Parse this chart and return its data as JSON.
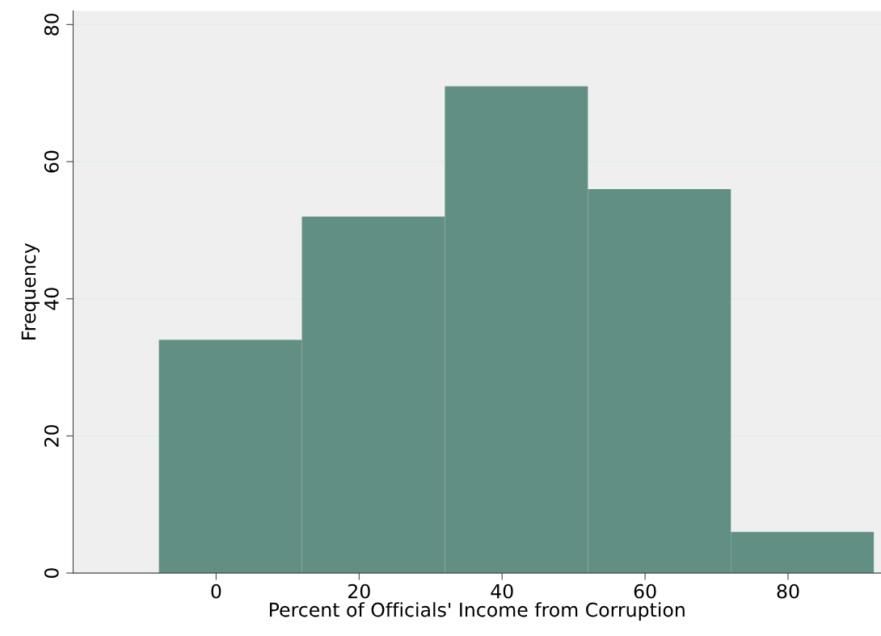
{
  "chart_data": {
    "type": "histogram",
    "xlabel": "Percent of Officials' Income from Corruption",
    "ylabel": "Frequency",
    "bins": [
      -8,
      12,
      32,
      52,
      72,
      92
    ],
    "values": [
      34,
      52,
      71,
      56,
      6
    ],
    "color": "#628f84",
    "xlim": [
      -20,
      93
    ],
    "ylim": [
      0,
      82
    ],
    "xticks": [
      0,
      20,
      40,
      60,
      80
    ],
    "yticks": [
      0,
      20,
      40,
      60,
      80
    ],
    "grid": "y"
  }
}
